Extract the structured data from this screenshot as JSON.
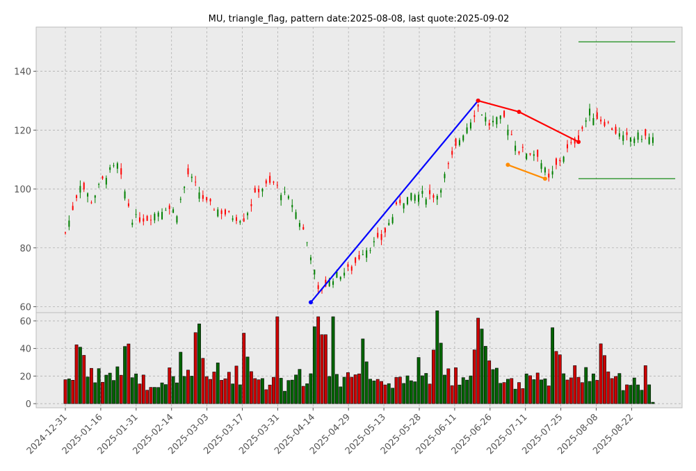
{
  "chart_data": [
    {
      "type": "candlestick",
      "title": "MU, triangle_flag, pattern date:2025-08-08, last quote:2025-09-02",
      "ylim": [
        58,
        155
      ],
      "yticks": [
        60,
        80,
        100,
        120,
        140
      ],
      "xticks": [
        "2024-12-31",
        "2025-01-16",
        "2025-01-31",
        "2025-02-14",
        "2025-03-03",
        "2025-03-17",
        "2025-03-31",
        "2025-04-14",
        "2025-04-29",
        "2025-05-13",
        "2025-05-28",
        "2025-06-11",
        "2025-06-26",
        "2025-07-11",
        "2025-07-25",
        "2025-08-08",
        "2025-08-22"
      ],
      "grid": true,
      "colors": {
        "up": "#008000",
        "down": "#ff0000",
        "bg": "#ebebeb"
      },
      "ohlc_total": 168,
      "annotations": [
        {
          "name": "pole",
          "color": "#0000ff",
          "points": [
            [
              66,
              61.5
            ],
            [
              111,
              130
            ]
          ]
        },
        {
          "name": "flag-upper",
          "color": "#ff0000",
          "points": [
            [
              111,
              130
            ],
            [
              122,
              126.2
            ],
            [
              138,
              116
            ]
          ]
        },
        {
          "name": "flag-lower",
          "color": "#ff8c00",
          "points": [
            [
              119,
              108.2
            ],
            [
              129,
              103.5
            ]
          ]
        },
        {
          "name": "target-high",
          "color": "#008000",
          "points": [
            [
              138,
              150
            ],
            [
              164,
              150
            ]
          ]
        },
        {
          "name": "target-low",
          "color": "#008000",
          "points": [
            [
              138,
              103.5
            ],
            [
              164,
              103.5
            ]
          ]
        }
      ]
    },
    {
      "type": "bar",
      "ylim": [
        -3,
        66
      ],
      "yticks": [
        0,
        20,
        40,
        60
      ],
      "grid": true
    }
  ]
}
